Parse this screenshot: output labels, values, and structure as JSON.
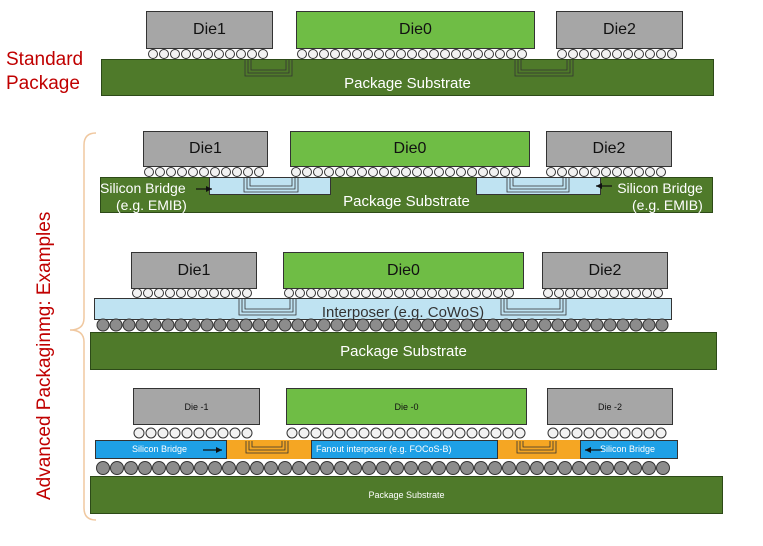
{
  "left_labels": {
    "standard_line1": "Standard",
    "standard_line2": "Package",
    "advanced": "Advanced Packaginmg: Examples"
  },
  "standard": {
    "die1": "Die1",
    "die0": "Die0",
    "die2": "Die2",
    "substrate": "Package Substrate"
  },
  "emib": {
    "die1": "Die1",
    "die0": "Die0",
    "die2": "Die2",
    "substrate": "Package Substrate",
    "bridge_left_1": "Silicon Bridge",
    "bridge_left_2": "(e.g. EMIB)",
    "bridge_right_1": "Silicon Bridge",
    "bridge_right_2": "(e.g. EMIB)"
  },
  "cowos": {
    "die1": "Die1",
    "die0": "Die0",
    "die2": "Die2",
    "interposer": "Interposer (e.g. CoWoS)",
    "substrate": "Package Substrate"
  },
  "focos": {
    "die1": "Die -1",
    "die0": "Die -0",
    "die2": "Die -2",
    "bridge_left": "Silicon Bridge",
    "fanout": "Fanout interposer (e.g. FOCoS-B)",
    "bridge_right": "Silicon Bridge",
    "substrate": "Package Substrate"
  },
  "colors": {
    "gray_die": "#a6a6a6",
    "green_die": "#6fbd45",
    "substrate": "#4f7a2a",
    "bridge": "#bfe3f2",
    "fanout_blue": "#1ea0e6",
    "fanout_orange": "#f5a623",
    "red_text": "#c00000"
  }
}
